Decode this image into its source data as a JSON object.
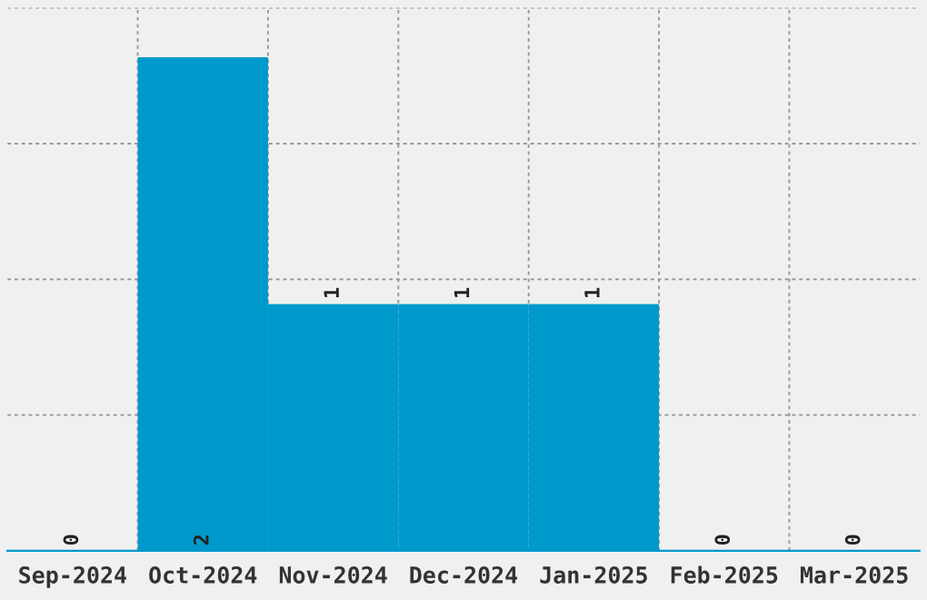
{
  "chart_data": {
    "type": "bar",
    "categories": [
      "Sep-2024",
      "Oct-2024",
      "Nov-2024",
      "Dec-2024",
      "Jan-2025",
      "Feb-2025",
      "Mar-2025"
    ],
    "values": [
      0,
      2,
      1,
      1,
      1,
      0,
      0
    ],
    "color": "#0099cc",
    "ylim": [
      0,
      2.2
    ],
    "yticks": [
      {
        "value": 0.55,
        "label": null
      },
      {
        "value": 1.1,
        "label": null
      },
      {
        "value": 1.65,
        "label": null
      },
      {
        "value": 2.2,
        "label": null
      }
    ],
    "grid": true,
    "data_labels": true
  }
}
